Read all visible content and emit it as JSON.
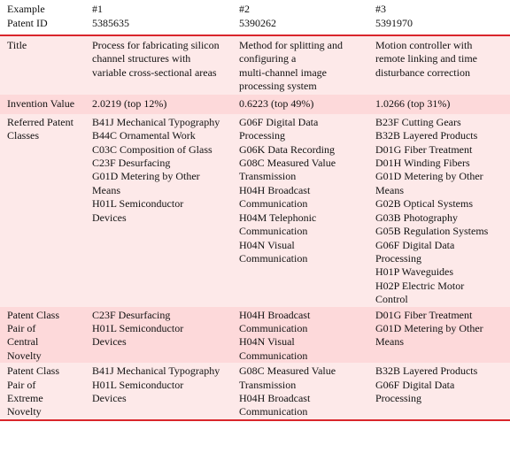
{
  "header": {
    "row1": {
      "label": "Example",
      "c1": "#1",
      "c2": "#2",
      "c3": "#3"
    },
    "row2": {
      "label": "Patent ID",
      "c1": "5385635",
      "c2": "5390262",
      "c3": "5391970"
    }
  },
  "rows": {
    "title": {
      "label": [
        "Title"
      ],
      "c1": [
        "Process for fabricating silicon",
        "channel structures with",
        "variable cross-sectional areas"
      ],
      "c2": [
        "Method for splitting and",
        "configuring a",
        "multi-channel image",
        "processing system"
      ],
      "c3": [
        "Motion controller with",
        "remote linking and time",
        "disturbance correction"
      ]
    },
    "value": {
      "label": [
        "Invention Value"
      ],
      "c1": [
        "2.0219 (top 12%)"
      ],
      "c2": [
        "0.6223 (top 49%)"
      ],
      "c3": [
        "1.0266 (top 31%)"
      ]
    },
    "referred": {
      "label": [
        "Referred Patent",
        "Classes"
      ],
      "c1": [
        "B41J Mechanical Typography",
        "B44C Ornamental Work",
        "C03C Composition of Glass",
        "C23F Desurfacing",
        "G01D Metering by Other",
        "Means",
        "H01L Semiconductor",
        "Devices"
      ],
      "c2": [
        "G06F Digital Data",
        "Processing",
        "G06K Data Recording",
        "G08C Measured Value",
        "Transmission",
        "H04H Broadcast",
        "Communication",
        "H04M Telephonic",
        "Communication",
        "H04N Visual",
        "Communication"
      ],
      "c3": [
        "B23F Cutting Gears",
        "B32B Layered Products",
        "D01G Fiber Treatment",
        "D01H Winding Fibers",
        "G01D Metering by Other",
        "Means",
        "G02B Optical Systems",
        "G03B Photography",
        "G05B Regulation Systems",
        "G06F Digital Data",
        "Processing",
        "H01P Waveguides",
        "H02P Electric Motor",
        "Control"
      ]
    },
    "central": {
      "label": [
        "Patent Class",
        "Pair of",
        "Central",
        "Novelty"
      ],
      "c1": [
        "C23F Desurfacing",
        "H01L Semiconductor",
        "Devices"
      ],
      "c2": [
        "H04H Broadcast",
        "Communication",
        "H04N Visual",
        "Communication"
      ],
      "c3": [
        "D01G Fiber Treatment",
        "G01D Metering by Other",
        "Means"
      ]
    },
    "extreme": {
      "label": [
        "Patent Class",
        "Pair of",
        "Extreme",
        "Novelty"
      ],
      "c1": [
        "B41J Mechanical Typography",
        "H01L Semiconductor",
        "Devices"
      ],
      "c2": [
        "G08C Measured Value",
        "Transmission",
        "H04H Broadcast",
        "Communication"
      ],
      "c3": [
        "B32B Layered Products",
        "G06F Digital Data",
        "Processing"
      ]
    }
  },
  "colors": {
    "rule": "#d9252b",
    "pink": "#fdd9da",
    "light": "#fde9e9"
  }
}
